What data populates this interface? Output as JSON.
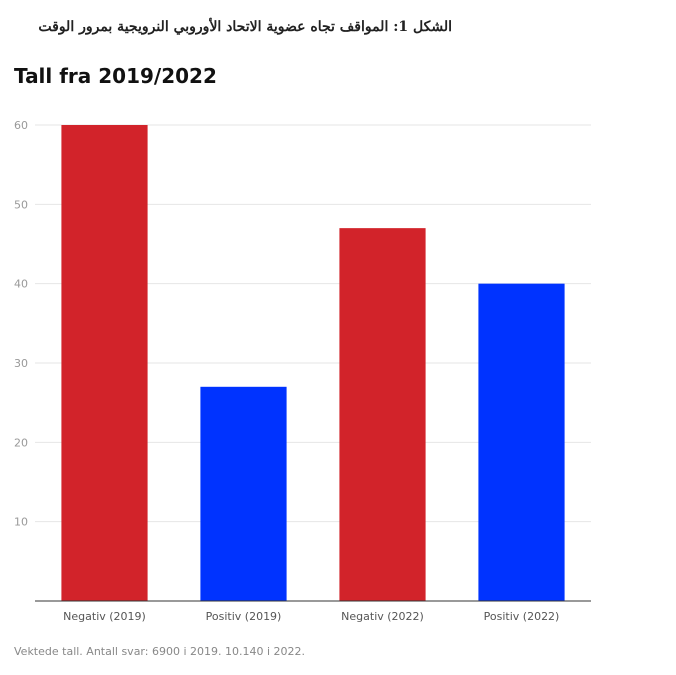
{
  "caption": "الشكل 1: المواقف تجاه عضوية الاتحاد الأوروبي النرويجية بمرور الوقت",
  "footnote": "Vektede tall. Antall svar: 6900 i 2019. 10.140 i 2022.",
  "chart_data": {
    "type": "bar",
    "title": "Tall fra 2019/2022",
    "xlabel": "",
    "ylabel": "",
    "categories": [
      "Negativ (2019)",
      "Positiv (2019)",
      "Negativ (2022)",
      "Positiv (2022)"
    ],
    "values": [
      60,
      27,
      47,
      40
    ],
    "bar_colors": [
      "#d2232a",
      "#0033ff",
      "#d2232a",
      "#0033ff"
    ],
    "ylim": [
      0,
      60
    ],
    "yticks": [
      10,
      20,
      30,
      40,
      50,
      60
    ],
    "grid": true,
    "legend": "none"
  }
}
